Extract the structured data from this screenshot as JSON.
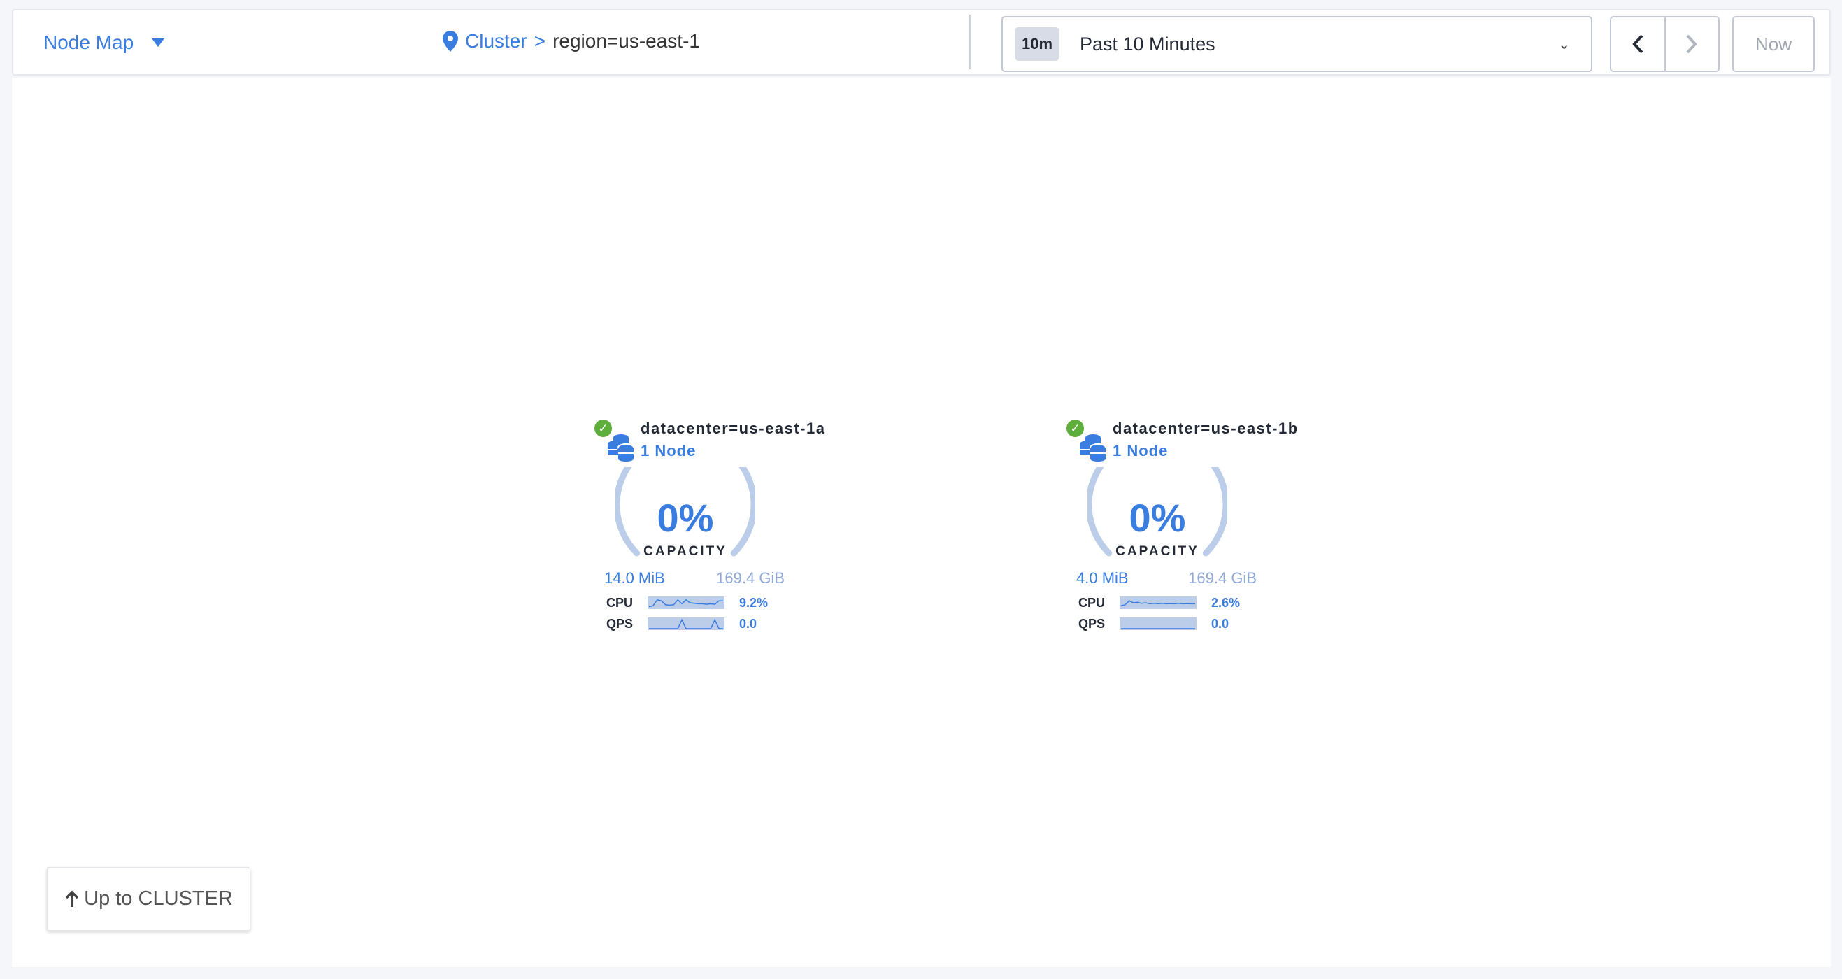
{
  "header": {
    "view_selector": "Node Map",
    "breadcrumb": {
      "parent": "Cluster",
      "separator": ">",
      "current": "region=us-east-1"
    },
    "time": {
      "badge": "10m",
      "label": "Past 10 Minutes"
    },
    "now_label": "Now"
  },
  "nodes": [
    {
      "title": "datacenter=us-east-1a",
      "count": "1 Node",
      "capacity_pct": "0%",
      "capacity_label": "CAPACITY",
      "used": "14.0 MiB",
      "total": "169.4 GiB",
      "cpu_label": "CPU",
      "cpu_value": "9.2%",
      "cpu_spark": [
        0.1,
        0.2,
        0.8,
        0.7,
        0.3,
        0.25,
        0.3,
        0.8,
        0.4,
        0.8,
        0.5,
        0.45,
        0.4,
        0.4,
        0.35,
        0.4,
        0.35,
        0.7,
        0.7
      ],
      "qps_label": "QPS",
      "qps_value": "0.0",
      "qps_spark": [
        0,
        0,
        0,
        0,
        0,
        0,
        0,
        0,
        0.9,
        0,
        0,
        0,
        0,
        0,
        0,
        0,
        0.9,
        0,
        0
      ]
    },
    {
      "title": "datacenter=us-east-1b",
      "count": "1 Node",
      "capacity_pct": "0%",
      "capacity_label": "CAPACITY",
      "used": "4.0 MiB",
      "total": "169.4 GiB",
      "cpu_label": "CPU",
      "cpu_value": "2.6%",
      "cpu_spark": [
        0.2,
        0.3,
        0.7,
        0.5,
        0.55,
        0.45,
        0.5,
        0.4,
        0.45,
        0.4,
        0.45,
        0.4,
        0.42,
        0.4,
        0.45,
        0.4,
        0.42,
        0.4,
        0.4
      ],
      "qps_label": "QPS",
      "qps_value": "0.0",
      "qps_spark": [
        0,
        0,
        0,
        0,
        0,
        0,
        0,
        0,
        0,
        0,
        0,
        0,
        0,
        0,
        0,
        0,
        0,
        0,
        0
      ]
    }
  ],
  "up_button": "Up to CLUSTER",
  "colors": {
    "accent": "#3a7de1",
    "healthy": "#5dae3a",
    "gauge_track": "#bccde9"
  }
}
